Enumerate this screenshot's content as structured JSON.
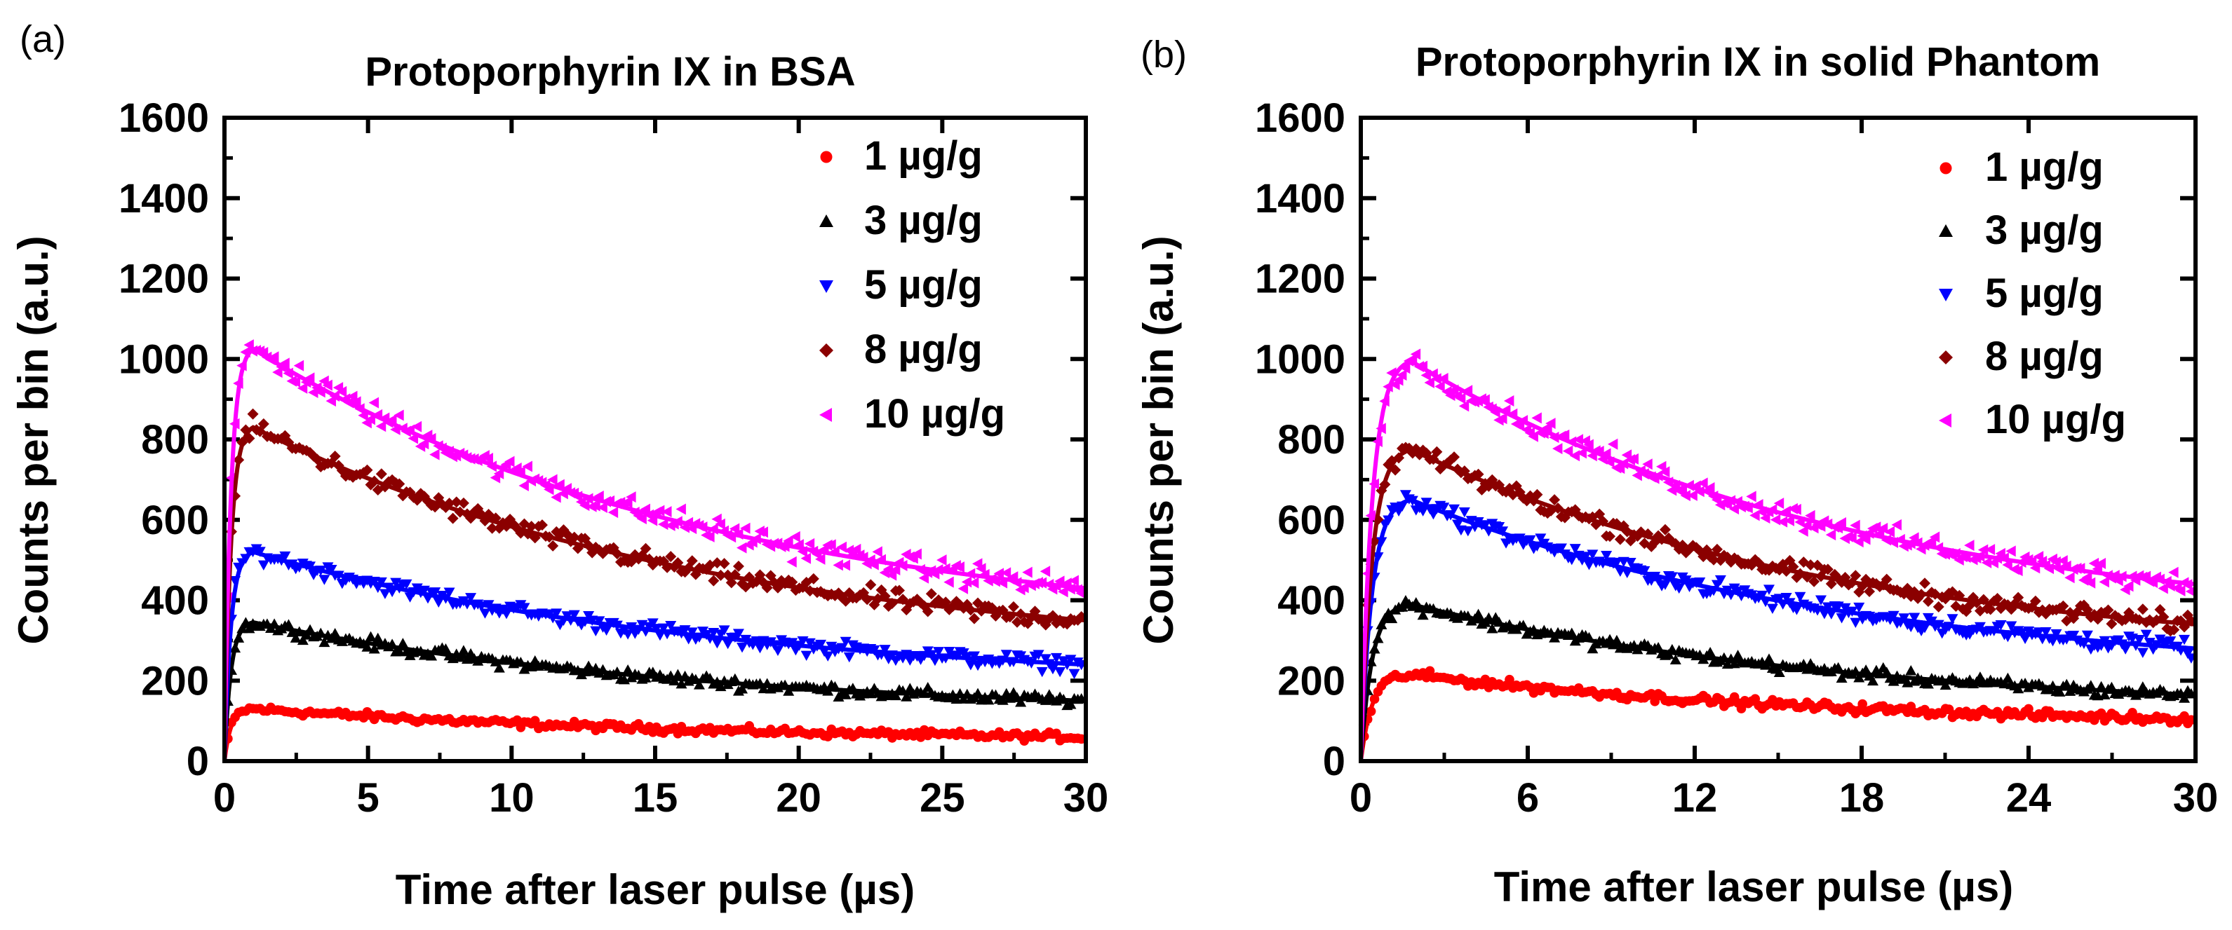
{
  "chart_data": [
    {
      "type": "scatter",
      "panel_label": "(a)",
      "title": "Protoporphyrin IX in BSA",
      "xlabel": "Time after laser pulse (µs)",
      "ylabel": "Counts per bin (a.u.)",
      "xlim": [
        0,
        30
      ],
      "ylim": [
        0,
        1600
      ],
      "x_ticks": [
        0,
        5,
        10,
        15,
        20,
        25,
        30
      ],
      "x_tick_labels": [
        "0",
        "5",
        "10",
        "15",
        "20",
        "25",
        "30"
      ],
      "y_ticks": [
        0,
        200,
        400,
        600,
        800,
        1000,
        1200,
        1400,
        1600
      ],
      "y_tick_labels": [
        "0",
        "200",
        "400",
        "600",
        "800",
        "1000",
        "1200",
        "1400",
        "1600"
      ],
      "legend_position": "top-right",
      "fit_lines": true,
      "series": [
        {
          "name": "1 µg/g",
          "color": "#ff0000",
          "marker": "circle",
          "peak_x": 1.0,
          "y_peak": 130,
          "y_end": 60
        },
        {
          "name": "3 µg/g",
          "color": "#000000",
          "marker": "triangle-up",
          "peak_x": 1.0,
          "y_peak": 345,
          "y_end": 150
        },
        {
          "name": "5 µg/g",
          "color": "#0000ff",
          "marker": "triangle-down",
          "peak_x": 1.0,
          "y_peak": 520,
          "y_end": 240
        },
        {
          "name": "8 µg/g",
          "color": "#8b0000",
          "marker": "diamond",
          "peak_x": 1.0,
          "y_peak": 830,
          "y_end": 350
        },
        {
          "name": "10 µg/g",
          "color": "#ff00ff",
          "marker": "triangle-left",
          "peak_x": 1.0,
          "y_peak": 1025,
          "y_end": 430
        }
      ]
    },
    {
      "type": "scatter",
      "panel_label": "(b)",
      "title": "Protoporphyrin IX in solid Phantom",
      "xlabel": "Time after laser pulse (µs)",
      "ylabel": "Counts per bin (a.u.)",
      "xlim": [
        0,
        30
      ],
      "ylim": [
        0,
        1600
      ],
      "x_ticks": [
        0,
        6,
        12,
        18,
        24,
        30
      ],
      "x_tick_labels": [
        "0",
        "6",
        "12",
        "18",
        "24",
        "30"
      ],
      "y_ticks": [
        0,
        200,
        400,
        600,
        800,
        1000,
        1200,
        1400,
        1600
      ],
      "y_tick_labels": [
        "0",
        "200",
        "400",
        "600",
        "800",
        "1000",
        "1200",
        "1400",
        "1600"
      ],
      "legend_position": "top-right",
      "fit_lines": true,
      "series": [
        {
          "name": "1 µg/g",
          "color": "#ff0000",
          "marker": "circle",
          "peak_x": 1.8,
          "y_peak": 215,
          "y_end": 105
        },
        {
          "name": "3 µg/g",
          "color": "#000000",
          "marker": "triangle-up",
          "peak_x": 1.8,
          "y_peak": 390,
          "y_end": 165
        },
        {
          "name": "5 µg/g",
          "color": "#0000ff",
          "marker": "triangle-down",
          "peak_x": 1.8,
          "y_peak": 650,
          "y_end": 280
        },
        {
          "name": "8 µg/g",
          "color": "#8b0000",
          "marker": "diamond",
          "peak_x": 1.8,
          "y_peak": 775,
          "y_end": 340
        },
        {
          "name": "10 µg/g",
          "color": "#ff00ff",
          "marker": "triangle-left",
          "peak_x": 1.8,
          "y_peak": 995,
          "y_end": 440
        }
      ]
    }
  ]
}
